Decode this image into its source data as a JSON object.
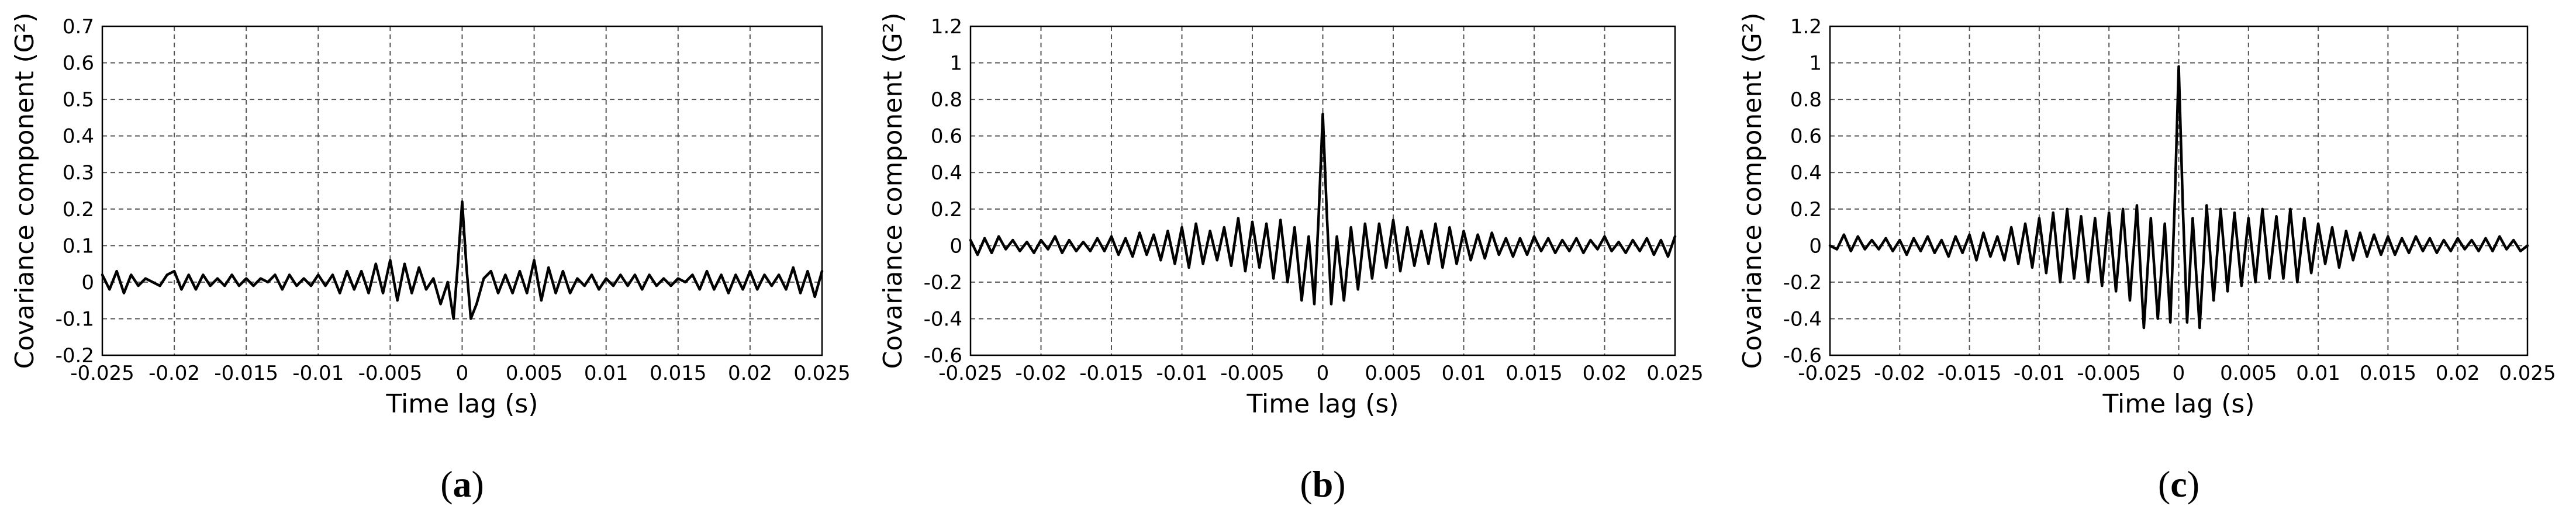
{
  "panel_labels": [
    "(a)",
    "(b)",
    "(c)"
  ],
  "chart_data": [
    {
      "type": "line",
      "panel": "(a)",
      "xlabel": "Time lag (s)",
      "ylabel": "Covariance component (G²)",
      "xlim": [
        -0.025,
        0.025
      ],
      "ylim": [
        -0.2,
        0.7
      ],
      "xticks": [
        -0.025,
        -0.02,
        -0.015,
        -0.01,
        -0.005,
        0,
        0.005,
        0.01,
        0.015,
        0.02,
        0.025
      ],
      "xtick_labels": [
        "-0.025",
        "-0.02",
        "-0.015",
        "-0.01",
        "-0.005",
        "0",
        "0.005",
        "0.01",
        "0.015",
        "0.02",
        "0.025"
      ],
      "yticks": [
        -0.2,
        -0.1,
        0,
        0.1,
        0.2,
        0.3,
        0.4,
        0.5,
        0.6,
        0.7
      ],
      "ytick_labels": [
        "-0.2",
        "-0.1",
        "0",
        "0.1",
        "0.2",
        "0.3",
        "0.4",
        "0.5",
        "0.6",
        "0.7"
      ],
      "grid": true,
      "color": "#000000",
      "series": [
        {
          "x": [
            -0.025,
            -0.0245,
            -0.024,
            -0.0235,
            -0.023,
            -0.0225,
            -0.022,
            -0.0215,
            -0.021,
            -0.0205,
            -0.02,
            -0.0195,
            -0.019,
            -0.0185,
            -0.018,
            -0.0175,
            -0.017,
            -0.0165,
            -0.016,
            -0.0155,
            -0.015,
            -0.0145,
            -0.014,
            -0.0135,
            -0.013,
            -0.0125,
            -0.012,
            -0.0115,
            -0.011,
            -0.0105,
            -0.01,
            -0.0095,
            -0.009,
            -0.0085,
            -0.008,
            -0.0075,
            -0.007,
            -0.0065,
            -0.006,
            -0.0055,
            -0.005,
            -0.0045,
            -0.004,
            -0.0035,
            -0.003,
            -0.0025,
            -0.002,
            -0.0015,
            -0.001,
            -0.0006,
            -0.0003,
            0,
            0.0003,
            0.0006,
            0.001,
            0.0015,
            0.002,
            0.0025,
            0.003,
            0.0035,
            0.004,
            0.0045,
            0.005,
            0.0055,
            0.006,
            0.0065,
            0.007,
            0.0075,
            0.008,
            0.0085,
            0.009,
            0.0095,
            0.01,
            0.0105,
            0.011,
            0.0115,
            0.012,
            0.0125,
            0.013,
            0.0135,
            0.014,
            0.0145,
            0.015,
            0.0155,
            0.016,
            0.0165,
            0.017,
            0.0175,
            0.018,
            0.0185,
            0.019,
            0.0195,
            0.02,
            0.0205,
            0.021,
            0.0215,
            0.022,
            0.0225,
            0.023,
            0.0235,
            0.024,
            0.0245,
            0.025
          ],
          "y": [
            0.02,
            -0.02,
            0.03,
            -0.03,
            0.02,
            -0.01,
            0.01,
            0.0,
            -0.01,
            0.02,
            0.03,
            -0.02,
            0.02,
            -0.02,
            0.02,
            -0.01,
            0.01,
            -0.01,
            0.02,
            -0.01,
            0.01,
            -0.01,
            0.01,
            0.0,
            0.02,
            -0.02,
            0.02,
            -0.01,
            0.01,
            -0.01,
            0.02,
            -0.01,
            0.02,
            -0.03,
            0.03,
            -0.02,
            0.03,
            -0.03,
            0.05,
            -0.03,
            0.06,
            -0.05,
            0.05,
            -0.03,
            0.04,
            -0.02,
            0.01,
            -0.06,
            0.0,
            -0.1,
            0.05,
            0.22,
            0.04,
            -0.1,
            -0.06,
            0.01,
            0.03,
            -0.03,
            0.02,
            -0.03,
            0.03,
            -0.03,
            0.06,
            -0.05,
            0.04,
            -0.03,
            0.03,
            -0.03,
            0.01,
            -0.01,
            0.02,
            -0.02,
            0.01,
            -0.01,
            0.02,
            -0.01,
            0.02,
            -0.02,
            0.02,
            -0.01,
            0.01,
            -0.01,
            0.01,
            0.0,
            0.02,
            -0.02,
            0.03,
            -0.02,
            0.02,
            -0.03,
            0.02,
            -0.02,
            0.03,
            -0.02,
            0.02,
            -0.01,
            0.02,
            -0.02,
            0.04,
            -0.03,
            0.03,
            -0.04,
            0.03
          ]
        }
      ]
    },
    {
      "type": "line",
      "panel": "(b)",
      "xlabel": "Time lag (s)",
      "ylabel": "Covariance component (G²)",
      "xlim": [
        -0.025,
        0.025
      ],
      "ylim": [
        -0.6,
        1.2
      ],
      "xticks": [
        -0.025,
        -0.02,
        -0.015,
        -0.01,
        -0.005,
        0,
        0.005,
        0.01,
        0.015,
        0.02,
        0.025
      ],
      "xtick_labels": [
        "-0.025",
        "-0.02",
        "-0.015",
        "-0.01",
        "-0.005",
        "0",
        "0.005",
        "0.01",
        "0.015",
        "0.02",
        "0.025"
      ],
      "yticks": [
        -0.6,
        -0.4,
        -0.2,
        0,
        0.2,
        0.4,
        0.6,
        0.8,
        1.0,
        1.2
      ],
      "ytick_labels": [
        "-0.6",
        "-0.4",
        "-0.2",
        "0",
        "0.2",
        "0.4",
        "0.6",
        "0.8",
        "1",
        "1.2"
      ],
      "grid": true,
      "color": "#000000",
      "series": [
        {
          "x": [
            -0.025,
            -0.0245,
            -0.024,
            -0.0235,
            -0.023,
            -0.0225,
            -0.022,
            -0.0215,
            -0.021,
            -0.0205,
            -0.02,
            -0.0195,
            -0.019,
            -0.0185,
            -0.018,
            -0.0175,
            -0.017,
            -0.0165,
            -0.016,
            -0.0155,
            -0.015,
            -0.0145,
            -0.014,
            -0.0135,
            -0.013,
            -0.0125,
            -0.012,
            -0.0115,
            -0.011,
            -0.0105,
            -0.01,
            -0.0095,
            -0.009,
            -0.0085,
            -0.008,
            -0.0075,
            -0.007,
            -0.0065,
            -0.006,
            -0.0055,
            -0.005,
            -0.0045,
            -0.004,
            -0.0035,
            -0.003,
            -0.0025,
            -0.002,
            -0.0015,
            -0.001,
            -0.0006,
            -0.0003,
            0,
            0.0003,
            0.0006,
            0.001,
            0.0015,
            0.002,
            0.0025,
            0.003,
            0.0035,
            0.004,
            0.0045,
            0.005,
            0.0055,
            0.006,
            0.0065,
            0.007,
            0.0075,
            0.008,
            0.0085,
            0.009,
            0.0095,
            0.01,
            0.0105,
            0.011,
            0.0115,
            0.012,
            0.0125,
            0.013,
            0.0135,
            0.014,
            0.0145,
            0.015,
            0.0155,
            0.016,
            0.0165,
            0.017,
            0.0175,
            0.018,
            0.0185,
            0.019,
            0.0195,
            0.02,
            0.0205,
            0.021,
            0.0215,
            0.022,
            0.0225,
            0.023,
            0.0235,
            0.024,
            0.0245,
            0.025
          ],
          "y": [
            0.03,
            -0.05,
            0.04,
            -0.04,
            0.05,
            -0.02,
            0.03,
            -0.03,
            0.02,
            -0.04,
            0.03,
            -0.02,
            0.05,
            -0.04,
            0.03,
            -0.03,
            0.02,
            -0.03,
            0.04,
            -0.03,
            0.05,
            -0.05,
            0.04,
            -0.06,
            0.07,
            -0.05,
            0.06,
            -0.08,
            0.08,
            -0.1,
            0.1,
            -0.12,
            0.12,
            -0.1,
            0.08,
            -0.08,
            0.1,
            -0.11,
            0.15,
            -0.14,
            0.13,
            -0.12,
            0.12,
            -0.18,
            0.14,
            -0.2,
            0.1,
            -0.3,
            0.05,
            -0.32,
            0.15,
            0.72,
            0.15,
            -0.32,
            0.05,
            -0.3,
            0.1,
            -0.24,
            0.12,
            -0.18,
            0.12,
            -0.12,
            0.14,
            -0.14,
            0.1,
            -0.11,
            0.08,
            -0.1,
            0.12,
            -0.12,
            0.1,
            -0.1,
            0.08,
            -0.08,
            0.06,
            -0.07,
            0.07,
            -0.05,
            0.04,
            -0.06,
            0.04,
            -0.05,
            0.05,
            -0.03,
            0.04,
            -0.04,
            0.03,
            -0.03,
            0.04,
            -0.04,
            0.03,
            -0.02,
            0.05,
            -0.03,
            0.02,
            -0.04,
            0.03,
            -0.03,
            0.04,
            -0.05,
            0.03,
            -0.06,
            0.05
          ]
        }
      ]
    },
    {
      "type": "line",
      "panel": "(c)",
      "xlabel": "Time lag (s)",
      "ylabel": "Covariance component (G²)",
      "xlim": [
        -0.025,
        0.025
      ],
      "ylim": [
        -0.6,
        1.2
      ],
      "xticks": [
        -0.025,
        -0.02,
        -0.015,
        -0.01,
        -0.005,
        0,
        0.005,
        0.01,
        0.015,
        0.02,
        0.025
      ],
      "xtick_labels": [
        "-0.025",
        "-0.02",
        "-0.015",
        "-0.01",
        "-0.005",
        "0",
        "0.005",
        "0.01",
        "0.015",
        "0.02",
        "0.025"
      ],
      "yticks": [
        -0.6,
        -0.4,
        -0.2,
        0,
        0.2,
        0.4,
        0.6,
        0.8,
        1.0,
        1.2
      ],
      "ytick_labels": [
        "-0.6",
        "-0.4",
        "-0.2",
        "0",
        "0.2",
        "0.4",
        "0.6",
        "0.8",
        "1",
        "1.2"
      ],
      "grid": true,
      "color": "#000000",
      "series": [
        {
          "x": [
            -0.025,
            -0.0245,
            -0.024,
            -0.0235,
            -0.023,
            -0.0225,
            -0.022,
            -0.0215,
            -0.021,
            -0.0205,
            -0.02,
            -0.0195,
            -0.019,
            -0.0185,
            -0.018,
            -0.0175,
            -0.017,
            -0.0165,
            -0.016,
            -0.0155,
            -0.015,
            -0.0145,
            -0.014,
            -0.0135,
            -0.013,
            -0.0125,
            -0.012,
            -0.0115,
            -0.011,
            -0.0105,
            -0.01,
            -0.0095,
            -0.009,
            -0.0085,
            -0.008,
            -0.0075,
            -0.007,
            -0.0065,
            -0.006,
            -0.0055,
            -0.005,
            -0.0045,
            -0.004,
            -0.0035,
            -0.003,
            -0.0025,
            -0.002,
            -0.0015,
            -0.001,
            -0.0006,
            -0.0003,
            0,
            0.0003,
            0.0006,
            0.001,
            0.0015,
            0.002,
            0.0025,
            0.003,
            0.0035,
            0.004,
            0.0045,
            0.005,
            0.0055,
            0.006,
            0.0065,
            0.007,
            0.0075,
            0.008,
            0.0085,
            0.009,
            0.0095,
            0.01,
            0.0105,
            0.011,
            0.0115,
            0.012,
            0.0125,
            0.013,
            0.0135,
            0.014,
            0.0145,
            0.015,
            0.0155,
            0.016,
            0.0165,
            0.017,
            0.0175,
            0.018,
            0.0185,
            0.019,
            0.0195,
            0.02,
            0.0205,
            0.021,
            0.0215,
            0.022,
            0.0225,
            0.023,
            0.0235,
            0.024,
            0.0245,
            0.025
          ],
          "y": [
            0.0,
            -0.02,
            0.06,
            -0.03,
            0.05,
            -0.02,
            0.03,
            -0.02,
            0.04,
            -0.03,
            0.03,
            -0.05,
            0.04,
            -0.03,
            0.05,
            -0.04,
            0.03,
            -0.06,
            0.05,
            -0.04,
            0.06,
            -0.08,
            0.07,
            -0.06,
            0.05,
            -0.08,
            0.1,
            -0.1,
            0.12,
            -0.12,
            0.15,
            -0.15,
            0.18,
            -0.2,
            0.2,
            -0.18,
            0.16,
            -0.2,
            0.15,
            -0.22,
            0.18,
            -0.25,
            0.2,
            -0.3,
            0.22,
            -0.45,
            0.15,
            -0.4,
            0.12,
            -0.42,
            0.2,
            0.98,
            0.2,
            -0.42,
            0.15,
            -0.45,
            0.22,
            -0.3,
            0.2,
            -0.25,
            0.18,
            -0.22,
            0.15,
            -0.2,
            0.2,
            -0.18,
            0.16,
            -0.18,
            0.2,
            -0.2,
            0.15,
            -0.15,
            0.12,
            -0.1,
            0.1,
            -0.12,
            0.08,
            -0.08,
            0.07,
            -0.06,
            0.06,
            -0.05,
            0.05,
            -0.05,
            0.04,
            -0.04,
            0.05,
            -0.03,
            0.04,
            -0.04,
            0.03,
            -0.03,
            0.04,
            -0.02,
            0.03,
            -0.03,
            0.04,
            -0.03,
            0.05,
            -0.02,
            0.03,
            -0.03,
            0.0
          ]
        }
      ]
    }
  ]
}
